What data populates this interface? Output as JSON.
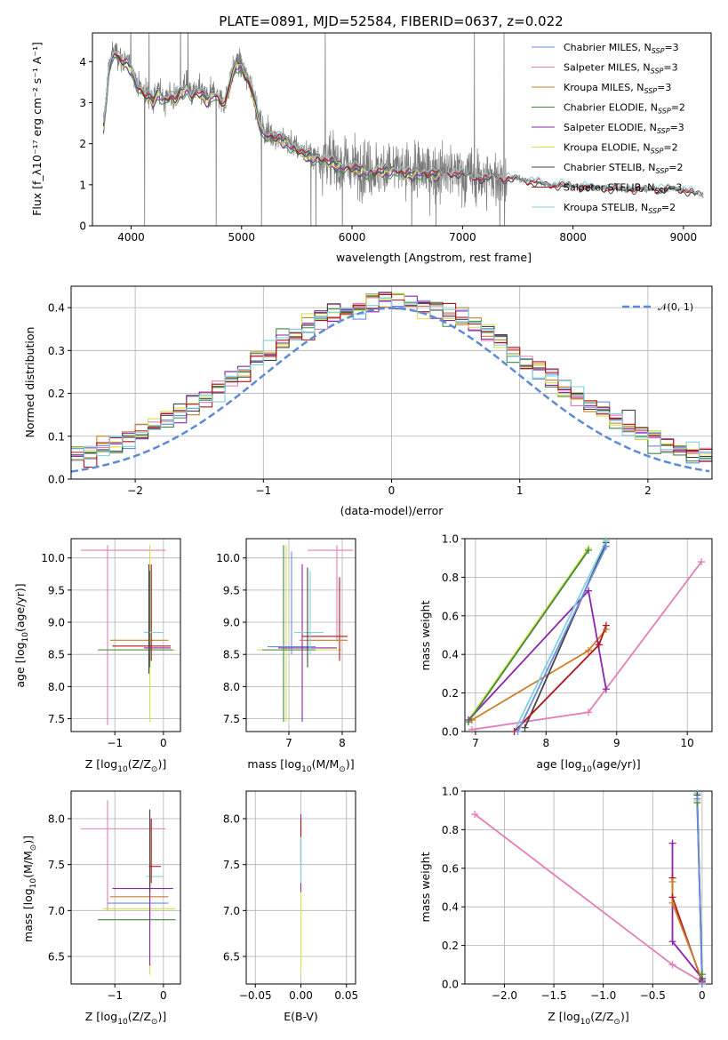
{
  "title": "PLATE=0891, MJD=52584, FIBERID=0637, z=0.022",
  "colors": {
    "Chabrier MILES": "#6b8be6",
    "Salpeter MILES": "#e37eb8",
    "Kroupa MILES": "#c87f2a",
    "Chabrier ELODIE": "#3f8a3f",
    "Salpeter ELODIE": "#8e24aa",
    "Kroupa ELODIE": "#d8e04a",
    "Chabrier STELIB": "#444444",
    "Salpeter STELIB": "#b3151b",
    "Kroupa STELIB": "#7fd3de",
    "data": "#7a7a7a",
    "gauss": "#5b8bd6"
  },
  "chart_data": [
    {
      "id": "spectrum",
      "type": "line",
      "xlabel": "wavelength [Angstrom, rest frame]",
      "ylabel": "Flux [f_λ10⁻¹⁷ erg cm⁻² s⁻¹ A⁻¹]",
      "xlim": [
        3650,
        9250
      ],
      "ylim": [
        0,
        4.7
      ],
      "xticks": [
        4000,
        5000,
        6000,
        7000,
        8000,
        9000
      ],
      "yticks": [
        0,
        1,
        2,
        3,
        4
      ],
      "grid": false,
      "legend_position": "right",
      "legend": [
        {
          "base": "Chabrier MILES, N",
          "sub": "SSP",
          "tail": "=3",
          "model": "Chabrier MILES"
        },
        {
          "base": "Salpeter MILES, N",
          "sub": "SSP",
          "tail": "=3",
          "model": "Salpeter MILES"
        },
        {
          "base": "Kroupa MILES, N",
          "sub": "SSP",
          "tail": "=3",
          "model": "Kroupa MILES"
        },
        {
          "base": "Chabrier ELODIE, N",
          "sub": "SSP",
          "tail": "=2",
          "model": "Chabrier ELODIE"
        },
        {
          "base": "Salpeter ELODIE, N",
          "sub": "SSP",
          "tail": "=3",
          "model": "Salpeter ELODIE"
        },
        {
          "base": "Kroupa ELODIE, N",
          "sub": "SSP",
          "tail": "=2",
          "model": "Kroupa ELODIE"
        },
        {
          "base": "Chabrier STELIB, N",
          "sub": "SSP",
          "tail": "=2",
          "model": "Chabrier STELIB"
        },
        {
          "base": "Salpeter STELIB, N",
          "sub": "SSP",
          "tail": "=3",
          "model": "Salpeter STELIB"
        },
        {
          "base": "Kroupa STELIB, N",
          "sub": "SSP",
          "tail": "=2",
          "model": "Kroupa STELIB"
        }
      ],
      "continuum_x": [
        3750,
        3800,
        3850,
        3900,
        3950,
        4000,
        4050,
        4100,
        4150,
        4200,
        4250,
        4300,
        4350,
        4400,
        4450,
        4500,
        4550,
        4600,
        4650,
        4700,
        4750,
        4800,
        4850,
        4900,
        4950,
        5000,
        5050,
        5100,
        5150,
        5200,
        5300,
        5400,
        5500,
        5600,
        5700,
        5800,
        5900,
        6000,
        6100,
        6200,
        6300,
        6400,
        6500,
        6600,
        6700,
        6800,
        6900,
        7000,
        7100,
        7200,
        7300,
        7400,
        7500,
        7600,
        7700,
        7800,
        7900,
        8000,
        8100,
        8200,
        8300,
        8400,
        8500,
        8600,
        8700,
        8800,
        8900,
        9000,
        9100,
        9200
      ],
      "continuum_y": [
        2.4,
        3.9,
        4.3,
        4.1,
        4.0,
        3.9,
        3.5,
        3.3,
        3.2,
        3.1,
        3.3,
        3.1,
        3.2,
        3.1,
        3.3,
        3.4,
        3.2,
        3.3,
        3.2,
        3.1,
        3.3,
        3.1,
        3.0,
        3.6,
        4.0,
        3.9,
        3.6,
        3.3,
        2.7,
        2.3,
        2.2,
        2.1,
        1.9,
        1.75,
        1.7,
        1.6,
        1.5,
        1.45,
        1.4,
        1.35,
        1.4,
        1.4,
        1.3,
        1.35,
        1.3,
        1.3,
        1.3,
        1.25,
        1.2,
        1.15,
        1.2,
        1.15,
        1.15,
        1.1,
        1.05,
        1.0,
        1.0,
        0.98,
        0.95,
        0.92,
        0.92,
        0.9,
        0.9,
        0.9,
        0.9,
        0.9,
        0.9,
        0.88,
        0.8,
        0.75
      ],
      "model_ranges": {
        "MILES": [
          3750,
          7430
        ],
        "ELODIE": [
          3750,
          6800
        ],
        "STELIB": [
          3750,
          9180
        ]
      }
    },
    {
      "id": "residuals",
      "type": "line",
      "xlabel": "(data-model)/error",
      "ylabel": "Normed distribution",
      "xlim": [
        -2.5,
        2.5
      ],
      "ylim": [
        0,
        0.45
      ],
      "xticks": [
        -2,
        -1,
        0,
        1,
        2
      ],
      "yticks": [
        0.0,
        0.1,
        0.2,
        0.3,
        0.4
      ],
      "grid": true,
      "legend": "𝒩(0, 1)",
      "legend_position": "top-right",
      "bin_width": 0.1
    },
    {
      "id": "Z_vs_age",
      "type": "scatter",
      "xlabel_base": "Z [log",
      "xlabel_sub": "10",
      "xlabel_tail": "(Z/Z",
      "ylabel_base": "age  [log",
      "ylabel_sub": "10",
      "ylabel_tail": "(age/yr)]",
      "xlim": [
        -1.9,
        0.35
      ],
      "ylim": [
        7.3,
        10.3
      ],
      "xticks": [
        -1,
        0
      ],
      "yticks": [
        7.5,
        8.0,
        8.5,
        9.0,
        9.5,
        10.0
      ],
      "grid": true
    },
    {
      "id": "mass_vs_age",
      "type": "scatter",
      "xlabel_base": "mass [log",
      "xlabel_sub": "10",
      "xlabel_tail": "(M/M",
      "xlim": [
        6.2,
        8.25
      ],
      "ylim": [
        7.3,
        10.3
      ],
      "xticks": [
        7,
        8
      ],
      "yticks": [
        7.5,
        8.0,
        8.5,
        9.0,
        9.5,
        10.0
      ],
      "grid": true
    },
    {
      "id": "age_vs_weight",
      "type": "line",
      "xlabel_base": "age  [log",
      "xlabel_sub": "10",
      "xlabel_tail": "(age/yr)]",
      "ylabel": "mass weight",
      "xlim": [
        6.85,
        10.35
      ],
      "ylim": [
        0,
        1
      ],
      "xticks": [
        7,
        8,
        9,
        10
      ],
      "yticks": [
        0.0,
        0.2,
        0.4,
        0.6,
        0.8,
        1.0
      ],
      "grid": true,
      "series": [
        {
          "name": "Salpeter MILES",
          "x": [
            6.95,
            8.6,
            10.2
          ],
          "y": [
            0.01,
            0.1,
            0.88
          ]
        },
        {
          "name": "Kroupa ELODIE",
          "x": [
            6.9,
            8.6
          ],
          "y": [
            0.06,
            0.95
          ]
        },
        {
          "name": "Kroupa MILES",
          "x": [
            6.95,
            8.6,
            8.85
          ],
          "y": [
            0.06,
            0.42,
            0.53
          ]
        },
        {
          "name": "Salpeter ELODIE",
          "x": [
            6.9,
            8.6,
            8.85
          ],
          "y": [
            0.06,
            0.73,
            0.22
          ]
        },
        {
          "name": "Chabrier STELIB",
          "x": [
            7.7,
            8.85
          ],
          "y": [
            0.02,
            0.98
          ]
        },
        {
          "name": "Kroupa STELIB",
          "x": [
            7.55,
            8.85
          ],
          "y": [
            0.0,
            0.99
          ]
        },
        {
          "name": "Salpeter STELIB",
          "x": [
            7.55,
            8.75,
            8.85
          ],
          "y": [
            0.0,
            0.45,
            0.55
          ]
        },
        {
          "name": "Chabrier MILES",
          "x": [
            7.6,
            8.85
          ],
          "y": [
            0.0,
            0.96
          ]
        },
        {
          "name": "Chabrier ELODIE",
          "x": [
            6.9,
            8.6
          ],
          "y": [
            0.05,
            0.94
          ]
        }
      ]
    },
    {
      "id": "Z_vs_mass",
      "type": "scatter",
      "xlabel_base": "Z [log",
      "xlabel_sub": "10",
      "xlabel_tail": "(Z/Z",
      "ylabel_base": "mass [log",
      "ylabel_sub": "10",
      "ylabel_tail": "(M/M",
      "xlim": [
        -1.9,
        0.35
      ],
      "ylim": [
        6.2,
        8.3
      ],
      "xticks": [
        -1,
        0
      ],
      "yticks": [
        6.5,
        7.0,
        7.5,
        8.0
      ],
      "grid": true
    },
    {
      "id": "ebv_vs_mass",
      "type": "scatter",
      "xlabel": "E(B-V)",
      "xlim": [
        -0.06,
        0.06
      ],
      "ylim": [
        6.2,
        8.3
      ],
      "xticks": [
        -0.05,
        0.0,
        0.05
      ],
      "yticks": [
        6.5,
        7.0,
        7.5,
        8.0
      ],
      "grid": true
    },
    {
      "id": "Z_vs_weight",
      "type": "line",
      "xlabel_base": "Z [log",
      "xlabel_sub": "10",
      "xlabel_tail": "(Z/Z",
      "ylabel": "mass weight",
      "xlim": [
        -2.4,
        0.1
      ],
      "ylim": [
        0,
        1
      ],
      "xticks": [
        -2.0,
        -1.5,
        -1.0,
        -0.5,
        0.0
      ],
      "yticks": [
        0.0,
        0.2,
        0.4,
        0.6,
        0.8,
        1.0
      ],
      "grid": true,
      "series": [
        {
          "name": "Salpeter MILES",
          "x": [
            -2.3,
            -0.3,
            0.0
          ],
          "y": [
            0.88,
            0.1,
            0.01
          ]
        },
        {
          "name": "Salpeter ELODIE",
          "x": [
            -0.3,
            -0.3,
            0.0
          ],
          "y": [
            0.73,
            0.22,
            0.03
          ]
        },
        {
          "name": "Salpeter STELIB",
          "x": [
            -0.3,
            -0.3,
            0.0
          ],
          "y": [
            0.55,
            0.45,
            0.01
          ]
        },
        {
          "name": "Kroupa MILES",
          "x": [
            -0.3,
            -0.3,
            0.0
          ],
          "y": [
            0.53,
            0.42,
            0.02
          ]
        },
        {
          "name": "Kroupa STELIB",
          "x": [
            -0.05,
            0.0
          ],
          "y": [
            0.99,
            0.0
          ]
        },
        {
          "name": "Kroupa ELODIE",
          "x": [
            -0.05,
            0.0
          ],
          "y": [
            0.95,
            0.05
          ]
        },
        {
          "name": "Chabrier STELIB",
          "x": [
            -0.05,
            0.0
          ],
          "y": [
            0.98,
            0.02
          ]
        },
        {
          "name": "Chabrier ELODIE",
          "x": [
            -0.05,
            0.0
          ],
          "y": [
            0.94,
            0.05
          ]
        },
        {
          "name": "Chabrier MILES",
          "x": [
            -0.05,
            0.0
          ],
          "y": [
            0.96,
            0.0
          ]
        }
      ]
    }
  ]
}
